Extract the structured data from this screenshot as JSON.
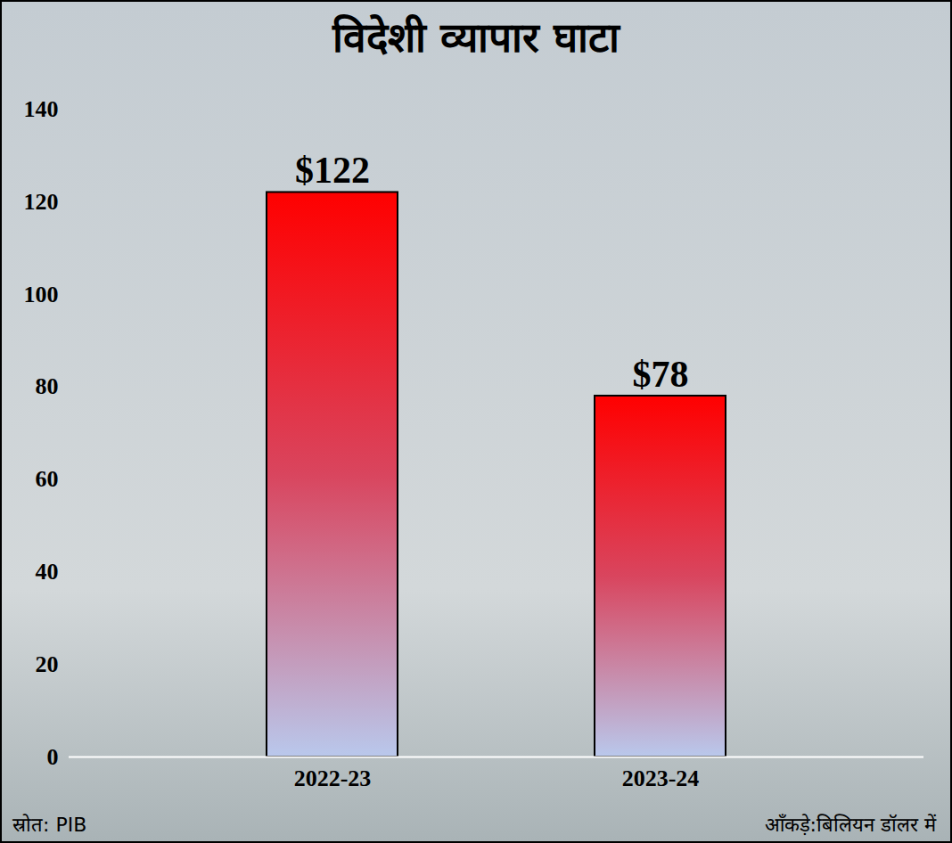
{
  "chart_data": {
    "type": "bar",
    "title": "विदेशी व्यापार घाटा",
    "categories": [
      "2022-23",
      "2023-24"
    ],
    "values": [
      122,
      78
    ],
    "value_labels": [
      "$122",
      "$78"
    ],
    "data_labels": true,
    "color": "#ff0000",
    "ylim": [
      0,
      140
    ],
    "yticks": [
      0,
      20,
      40,
      60,
      80,
      100,
      120,
      140
    ],
    "grid": false,
    "source": "स्रोत: PIB",
    "note": "आँकड़े:बिलियन डॉलर में"
  }
}
